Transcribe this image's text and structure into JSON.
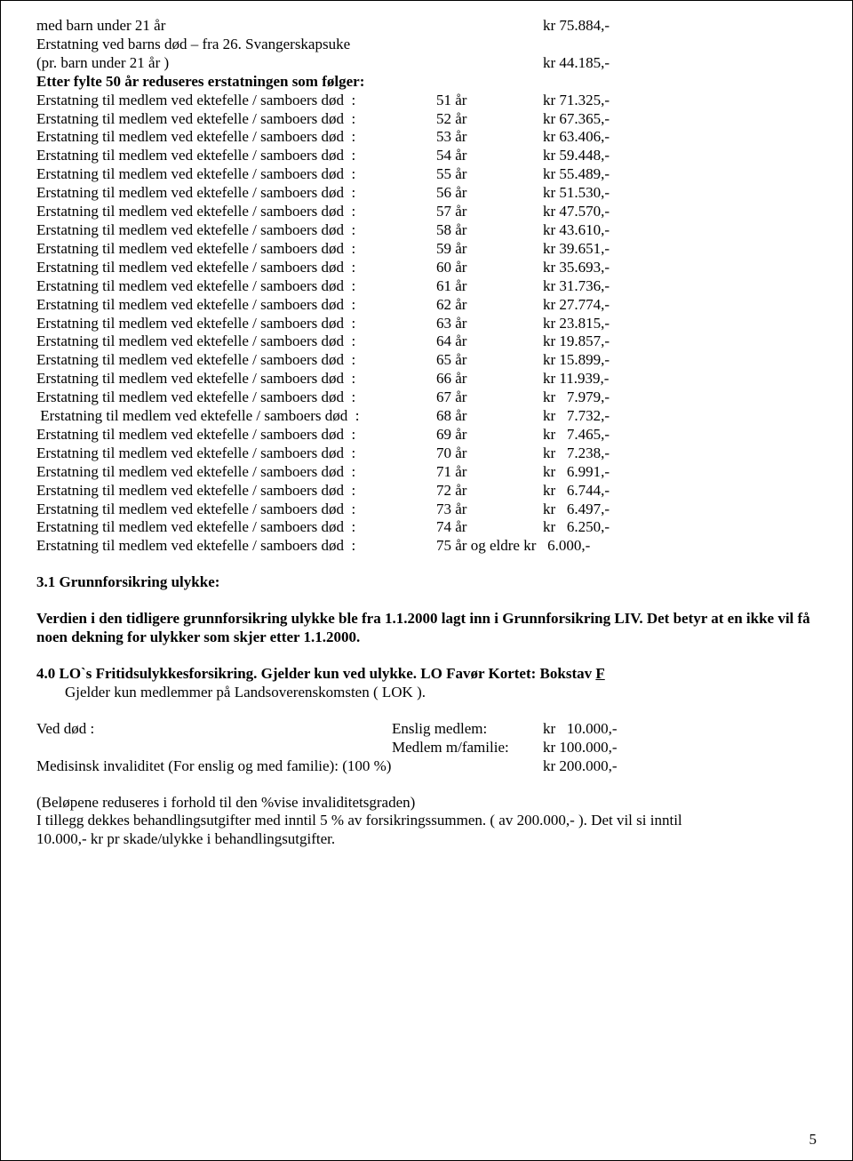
{
  "intro": {
    "line1_a": "med barn under 21 år",
    "line1_c": "kr 75.884,-",
    "line2": "Erstatning ved barns død – fra 26. Svangerskapsuke",
    "line3_a": "(pr. barn under 21 år )",
    "line3_c": "kr 44.185,-",
    "etter": "Etter fylte 50 år reduseres erstatningen som følger:"
  },
  "rows": [
    {
      "a": "Erstatning til medlem ved ektefelle / samboers død  :",
      "b": "51 år",
      "c": "kr 71.325,-"
    },
    {
      "a": "Erstatning til medlem ved ektefelle / samboers død  :",
      "b": "52 år",
      "c": "kr 67.365,-"
    },
    {
      "a": "Erstatning til medlem ved ektefelle / samboers død  :",
      "b": "53 år",
      "c": "kr 63.406,-"
    },
    {
      "a": "Erstatning til medlem ved ektefelle / samboers død  :",
      "b": "54 år",
      "c": "kr 59.448,-"
    },
    {
      "a": "Erstatning til medlem ved ektefelle / samboers død  :",
      "b": "55 år",
      "c": "kr 55.489,-"
    },
    {
      "a": "Erstatning til medlem ved ektefelle / samboers død  :",
      "b": "56 år",
      "c": "kr 51.530,-"
    },
    {
      "a": "Erstatning til medlem ved ektefelle / samboers død  :",
      "b": "57 år",
      "c": "kr 47.570,-"
    },
    {
      "a": "Erstatning til medlem ved ektefelle / samboers død  :",
      "b": "58 år",
      "c": "kr 43.610,-"
    },
    {
      "a": "Erstatning til medlem ved ektefelle / samboers død  :",
      "b": "59 år",
      "c": "kr 39.651,-"
    },
    {
      "a": "Erstatning til medlem ved ektefelle / samboers død  :",
      "b": "60 år",
      "c": "kr 35.693,-"
    },
    {
      "a": "Erstatning til medlem ved ektefelle / samboers død  :",
      "b": "61 år",
      "c": "kr 31.736,-"
    },
    {
      "a": "Erstatning til medlem ved ektefelle / samboers død  :",
      "b": "62 år",
      "c": "kr 27.774,-"
    },
    {
      "a": "Erstatning til medlem ved ektefelle / samboers død  :",
      "b": "63 år",
      "c": "kr 23.815,-"
    },
    {
      "a": "Erstatning til medlem ved ektefelle / samboers død  :",
      "b": "64 år",
      "c": "kr 19.857,-"
    },
    {
      "a": "Erstatning til medlem ved ektefelle / samboers død  :",
      "b": "65 år",
      "c": "kr 15.899,-"
    },
    {
      "a": "Erstatning til medlem ved ektefelle / samboers død  :",
      "b": "66 år",
      "c": "kr 11.939,-"
    },
    {
      "a": "Erstatning til medlem ved ektefelle / samboers død  :",
      "b": "67 år",
      "c": "kr   7.979,-"
    },
    {
      "a": " Erstatning til medlem ved ektefelle / samboers død  :",
      "b": "68 år",
      "c": "kr   7.732,-"
    },
    {
      "a": "Erstatning til medlem ved ektefelle / samboers død  :",
      "b": "69 år",
      "c": "kr   7.465,-"
    },
    {
      "a": "Erstatning til medlem ved ektefelle / samboers død  :",
      "b": "70 år",
      "c": "kr   7.238,-"
    },
    {
      "a": "Erstatning til medlem ved ektefelle / samboers død  :",
      "b": "71 år",
      "c": "kr   6.991,-"
    },
    {
      "a": "Erstatning til medlem ved ektefelle / samboers død  :",
      "b": "72 år",
      "c": "kr   6.744,-"
    },
    {
      "a": "Erstatning til medlem ved ektefelle / samboers død  :",
      "b": "73 år",
      "c": "kr   6.497,-"
    },
    {
      "a": "Erstatning til medlem ved ektefelle / samboers død  :",
      "b": "74 år",
      "c": "kr   6.250,-"
    },
    {
      "a": "Erstatning til medlem ved ektefelle / samboers død  :",
      "b": "75 år og eldre",
      "c": "kr   6.000,-",
      "wide": true
    }
  ],
  "sec31": {
    "title": "3.1 Grunnforsikring ulykke:",
    "p1": "Verdien i den tidligere grunnforsikring ulykke ble fra 1.1.2000 lagt inn i Grunnforsikring LIV. Det betyr at en ikke vil få noen dekning for ulykker som skjer etter 1.1.2000."
  },
  "sec40": {
    "line1_a": "4.0  LO`s Fritidsulykkesforsikring. Gjelder kun ved ulykke. LO Favør Kortet: Bokstav ",
    "line1_f": "F",
    "line2": "Gjelder kun medlemmer på Landsoverenskomsten ( LOK ).",
    "r1_a": "Ved død :",
    "r1_b": "Enslig medlem:",
    "r1_c": "kr   10.000,-",
    "r2_b": "Medlem m/familie:",
    "r2_c": "kr 100.000,-",
    "r3_a": "Medisinsk invaliditet (For enslig og med familie): (100 %)",
    "r3_c": "kr 200.000,-"
  },
  "closing": {
    "p1": "(Beløpene reduseres i forhold til den %vise invaliditetsgraden)",
    "p2a": "I tillegg dekkes behandlingsutgifter med inntil 5 % av forsikringssummen. ( av 200.000,- ). Det vil si inntil",
    "p2b": " 10.000,- kr pr skade/ulykke i behandlingsutgifter."
  },
  "page_number": "5"
}
